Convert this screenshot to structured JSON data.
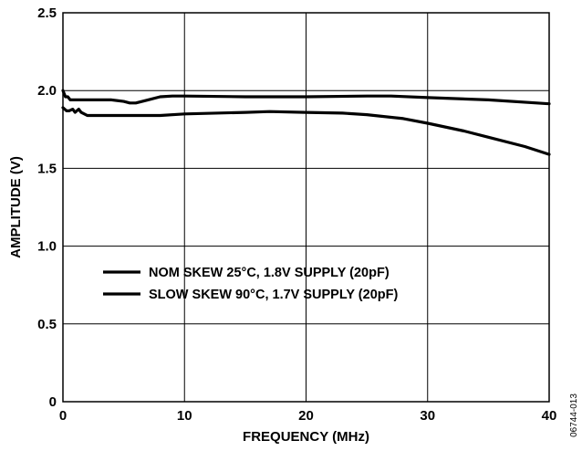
{
  "chart_data": {
    "type": "line",
    "xlabel": "FREQUENCY (MHz)",
    "ylabel": "AMPLITUDE (V)",
    "xlim": [
      0,
      40
    ],
    "ylim": [
      0,
      2.5
    ],
    "xticks": [
      "0",
      "10",
      "20",
      "30",
      "40"
    ],
    "xtick_values": [
      0,
      10,
      20,
      30,
      40
    ],
    "yticks": [
      "0",
      "0.5",
      "1.0",
      "1.5",
      "2.0",
      "2.5"
    ],
    "ytick_values": [
      0,
      0.5,
      1.0,
      1.5,
      2.0,
      2.5
    ],
    "grid": true,
    "legend_position": "center-left",
    "series": [
      {
        "name": "NOM SKEW 25°C, 1.8V SUPPLY (20pF)",
        "color": "#000000",
        "x": [
          0,
          0.2,
          0.4,
          0.6,
          0.8,
          1.0,
          2,
          3,
          4,
          5,
          5.5,
          6,
          7,
          8,
          9,
          10,
          15,
          20,
          25,
          27,
          30,
          35,
          40
        ],
        "y": [
          2.0,
          1.96,
          1.96,
          1.94,
          1.94,
          1.94,
          1.94,
          1.94,
          1.94,
          1.93,
          1.92,
          1.92,
          1.94,
          1.96,
          1.965,
          1.965,
          1.96,
          1.96,
          1.965,
          1.965,
          1.955,
          1.94,
          1.915
        ]
      },
      {
        "name": "SLOW SKEW 90°C, 1.7V SUPPLY (20pF)",
        "color": "#000000",
        "x": [
          0,
          0.3,
          0.5,
          0.8,
          1.0,
          1.3,
          1.5,
          2,
          3,
          5,
          8,
          10,
          15,
          17,
          20,
          23,
          25,
          28,
          30,
          33,
          35,
          38,
          40
        ],
        "y": [
          1.89,
          1.87,
          1.87,
          1.88,
          1.86,
          1.88,
          1.86,
          1.84,
          1.84,
          1.84,
          1.84,
          1.85,
          1.86,
          1.865,
          1.86,
          1.855,
          1.845,
          1.82,
          1.79,
          1.74,
          1.7,
          1.64,
          1.59
        ]
      }
    ]
  },
  "figure_id": "06744-013"
}
